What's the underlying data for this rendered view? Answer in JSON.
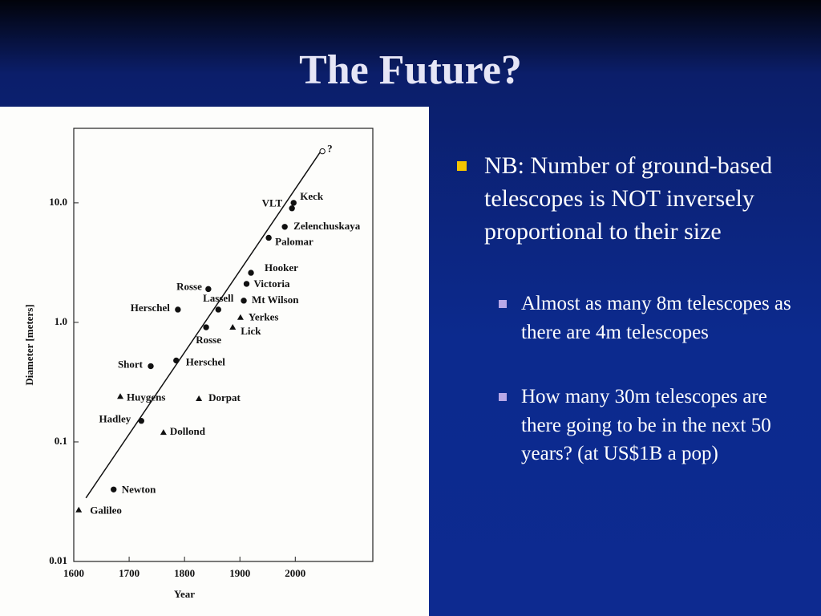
{
  "slide": {
    "title": "The Future?",
    "bullets": [
      {
        "text": "NB:  Number of ground-based telescopes is NOT inversely proportional to their size",
        "sub": [
          "Almost as many 8m telescopes as there are 4m telescopes",
          "How many 30m telescopes are there going to be in the next 50 years? (at US$1B a pop)"
        ]
      }
    ]
  },
  "chart_data": {
    "type": "scatter",
    "x_label": "Year",
    "y_label": "Diameter [meters]",
    "log_y": true,
    "xlim": [
      1600,
      2140
    ],
    "ylim": [
      0.01,
      42
    ],
    "xticks": [
      1600,
      1700,
      1800,
      1900,
      2000
    ],
    "yticks": [
      0.01,
      0.1,
      {
        "value": 1,
        "label": "1.0"
      },
      {
        "value": 10,
        "label": "10.0"
      }
    ],
    "labels": [
      "Galileo",
      "Newton",
      "Hadley",
      "Dollond",
      "Huygens",
      "Dorpat",
      "Short",
      "Herschel",
      "Herschel",
      "Rosse",
      "Rosse",
      "Lassell",
      "Mt Wilson",
      "Victoria",
      "Hooker",
      "Yerkes",
      "Lick",
      "Palomar",
      "Zelenchuskaya",
      "Keck",
      "VLT",
      "?"
    ],
    "x": [
      1609,
      1672,
      1722,
      1762,
      1684,
      1826,
      1739,
      1785,
      1788,
      1843,
      1839,
      1861,
      1907,
      1912,
      1920,
      1901,
      1887,
      1952,
      1981,
      1997,
      1994,
      2049
    ],
    "values": [
      0.027,
      0.04,
      0.15,
      0.12,
      0.24,
      0.23,
      0.43,
      0.48,
      1.28,
      1.9,
      0.91,
      1.28,
      1.52,
      2.1,
      2.6,
      1.1,
      0.91,
      5.1,
      6.3,
      10,
      9,
      27
    ],
    "markers": [
      "triangle",
      "circle",
      "circle",
      "triangle",
      "triangle",
      "triangle",
      "circle",
      "circle",
      "circle",
      "circle",
      "circle",
      "circle",
      "circle",
      "circle",
      "circle",
      "triangle",
      "triangle",
      "circle",
      "circle",
      "circle",
      "circle",
      "open-circle"
    ],
    "trend": {
      "x": [
        1622,
        2046
      ],
      "values": [
        0.034,
        27
      ]
    },
    "color": "#111111"
  }
}
